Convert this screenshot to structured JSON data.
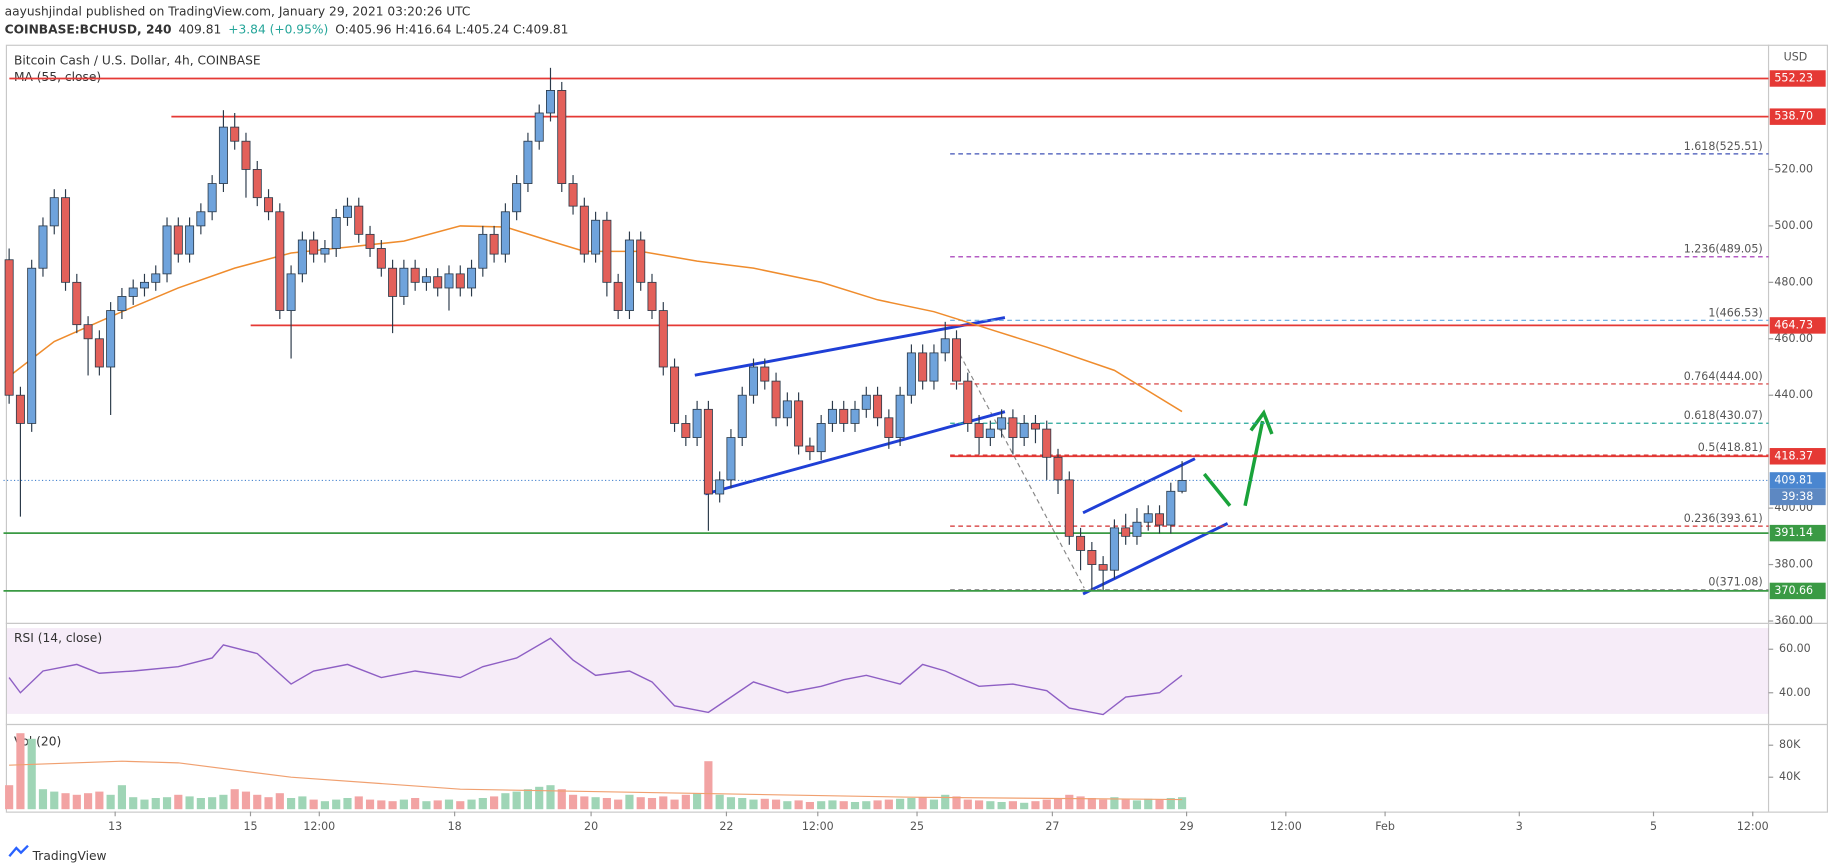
{
  "header": {
    "byline": "aayushjindal published on TradingView.com, January 29, 2021 03:20:26 UTC",
    "symbol": "COINBASE:BCHUSD, 240",
    "last": "409.81",
    "change": "+3.84 (+0.95%)",
    "ohlc": "O:405.96 H:416.64 L:405.24 C:409.81",
    "brand": "TradingView"
  },
  "chart_data": {
    "type": "candlestick",
    "title": "Bitcoin Cash / U.S. Dollar, 4h, COINBASE",
    "currency": "USD",
    "up_color": "#6fa3dc",
    "down_color": "#e3605a",
    "xlim": [
      -0.5,
      156
    ],
    "ylim": [
      360,
      564.2
    ],
    "grid": false,
    "yticks": [
      {
        "value": 520,
        "label": "520.00"
      },
      {
        "value": 500,
        "label": "500.00"
      },
      {
        "value": 480,
        "label": "480.00"
      },
      {
        "value": 460,
        "label": "460.00"
      },
      {
        "value": 440,
        "label": "440.00"
      },
      {
        "value": 400,
        "label": "400.00"
      },
      {
        "value": 380,
        "label": "380.00"
      },
      {
        "value": 360,
        "label": "360.00"
      }
    ],
    "xticks": [
      {
        "value": 9.4,
        "label": "13"
      },
      {
        "value": 21.4,
        "label": "15"
      },
      {
        "value": 27.5,
        "label": "12:00"
      },
      {
        "value": 39.5,
        "label": "18"
      },
      {
        "value": 51.6,
        "label": "20"
      },
      {
        "value": 63.6,
        "label": "22"
      },
      {
        "value": 71.7,
        "label": "12:00"
      },
      {
        "value": 80.5,
        "label": "25"
      },
      {
        "value": 92.5,
        "label": "27"
      },
      {
        "value": 104.4,
        "label": "29"
      },
      {
        "value": 113.2,
        "label": "12:00"
      },
      {
        "value": 122,
        "label": "Feb"
      },
      {
        "value": 133.9,
        "label": "3"
      },
      {
        "value": 145.8,
        "label": "5"
      },
      {
        "value": 154.6,
        "label": "12:00"
      }
    ],
    "open": [
      488,
      440,
      430,
      485,
      500,
      510,
      480,
      465,
      460,
      450,
      470,
      475,
      478,
      480,
      483,
      500,
      490,
      500,
      505,
      515,
      535,
      530,
      520,
      510,
      505,
      470,
      483,
      495,
      490,
      492,
      503,
      507,
      497,
      492,
      485,
      475,
      485,
      480,
      482,
      478,
      483,
      478,
      485,
      497,
      490,
      505,
      515,
      530,
      540,
      548,
      515,
      507,
      490,
      502,
      480,
      470,
      495,
      480,
      470,
      450,
      430,
      425,
      435,
      405,
      410,
      425,
      440,
      450,
      445,
      432,
      438,
      422,
      420,
      430,
      435,
      430,
      435,
      440,
      432,
      425,
      440,
      455,
      445,
      455,
      460,
      445,
      430,
      425,
      428,
      432,
      425,
      430,
      428,
      418,
      410,
      390,
      385,
      380,
      378,
      393,
      390,
      395,
      398,
      394,
      405.96
    ],
    "high": [
      492,
      443,
      488,
      503,
      513,
      513,
      483,
      468,
      463,
      473,
      478,
      481,
      483,
      486,
      503,
      503,
      503,
      508,
      518,
      541,
      540,
      533,
      523,
      513,
      508,
      486,
      498,
      498,
      495,
      506,
      510,
      510,
      500,
      495,
      488,
      488,
      488,
      485,
      485,
      486,
      486,
      488,
      500,
      500,
      508,
      518,
      533,
      543,
      556,
      551,
      518,
      510,
      505,
      505,
      483,
      498,
      498,
      483,
      473,
      453,
      433,
      438,
      438,
      413,
      428,
      443,
      453,
      453,
      448,
      441,
      441,
      425,
      433,
      438,
      438,
      438,
      443,
      443,
      435,
      443,
      458,
      458,
      458,
      466,
      463,
      448,
      433,
      431,
      435,
      435,
      433,
      433,
      431,
      421,
      413,
      393,
      388,
      383,
      396,
      398,
      400,
      401,
      401,
      409,
      416.64
    ],
    "low": [
      437,
      397,
      427,
      482,
      497,
      477,
      462,
      447,
      447,
      433,
      467,
      472,
      475,
      477,
      480,
      487,
      487,
      497,
      502,
      512,
      527,
      510,
      507,
      502,
      467,
      453,
      480,
      487,
      487,
      489,
      500,
      494,
      489,
      482,
      462,
      472,
      477,
      477,
      475,
      470,
      475,
      475,
      482,
      487,
      487,
      502,
      512,
      527,
      537,
      512,
      504,
      487,
      487,
      475,
      467,
      467,
      477,
      467,
      447,
      427,
      422,
      422,
      392,
      402,
      407,
      422,
      437,
      442,
      429,
      429,
      419,
      417,
      417,
      427,
      427,
      427,
      432,
      429,
      421,
      422,
      437,
      442,
      442,
      452,
      442,
      427,
      419,
      422,
      425,
      419,
      422,
      423,
      410,
      405,
      387,
      378,
      371,
      371,
      375,
      387,
      387,
      392,
      391,
      391,
      405.24
    ],
    "close": [
      440,
      430,
      485,
      500,
      510,
      480,
      465,
      460,
      450,
      470,
      475,
      478,
      480,
      483,
      500,
      490,
      500,
      505,
      515,
      535,
      530,
      520,
      510,
      505,
      470,
      483,
      495,
      490,
      492,
      503,
      507,
      497,
      492,
      485,
      475,
      485,
      480,
      482,
      478,
      483,
      478,
      485,
      497,
      490,
      505,
      515,
      530,
      540,
      548,
      515,
      507,
      490,
      502,
      480,
      470,
      495,
      480,
      470,
      450,
      430,
      425,
      435,
      405,
      410,
      425,
      440,
      450,
      445,
      432,
      438,
      422,
      420,
      430,
      435,
      430,
      435,
      440,
      432,
      425,
      440,
      455,
      445,
      455,
      460,
      445,
      430,
      425,
      428,
      432,
      425,
      430,
      428,
      418,
      410,
      390,
      385,
      380,
      378,
      393,
      390,
      395,
      398,
      394,
      405.96,
      409.81
    ],
    "ma": {
      "name": "MA (55, close)",
      "color": "#ef8c2d",
      "x": [
        0,
        4,
        10,
        15,
        20,
        25,
        30,
        35,
        40,
        44,
        48,
        51,
        56,
        61,
        66,
        72,
        77,
        82,
        87,
        92,
        98,
        104
      ],
      "values": [
        446.7,
        459,
        469.6,
        478,
        485,
        490.4,
        492.5,
        494.6,
        500,
        499.6,
        494.6,
        491,
        491,
        487.5,
        485,
        480,
        473.8,
        469.6,
        463.3,
        457,
        448.8,
        434.2
      ]
    },
    "levels": [
      {
        "value": 552.23,
        "label": "552.23",
        "color": "#e53935"
      },
      {
        "value": 538.7,
        "label": "538.70",
        "color": "#e53935"
      },
      {
        "value": 464.73,
        "label": "464.73",
        "color": "#e53935"
      },
      {
        "value": 418.37,
        "label": "418.37",
        "color": "#e53935"
      },
      {
        "value": 391.14,
        "label": "391.14",
        "color": "#3a9a44"
      },
      {
        "value": 370.66,
        "label": "370.66",
        "color": "#3a9a44"
      }
    ],
    "last_price": {
      "value": 409.81,
      "color": "#4a86d0"
    },
    "countdown": "39:38",
    "fib": [
      {
        "value": 525.51,
        "label": "1.618(525.51)",
        "color": "#3f51b5"
      },
      {
        "value": 489.05,
        "label": "1.236(489.05)",
        "color": "#9c27b0"
      },
      {
        "value": 466.53,
        "label": "1(466.53)",
        "color": "#64a8e0"
      },
      {
        "value": 444.0,
        "label": "0.764(444.00)",
        "color": "#d32f2f"
      },
      {
        "value": 430.07,
        "label": "0.618(430.07)",
        "color": "#26a69a"
      },
      {
        "value": 418.81,
        "label": "0.5(418.81)",
        "color": "#d32f2f"
      },
      {
        "value": 393.61,
        "label": "0.236(393.61)",
        "color": "#d32f2f"
      },
      {
        "value": 371.08,
        "label": "0(371.08)",
        "color": "#888888"
      }
    ],
    "rsi": {
      "name": "RSI (14, close)",
      "color": "#8e5fc4",
      "ylim": [
        26.5,
        70.8
      ],
      "yticks": [
        {
          "value": 60,
          "label": "60.00"
        },
        {
          "value": 40,
          "label": "40.00"
        }
      ],
      "x": [
        0,
        1,
        3,
        6,
        8,
        11,
        15,
        18,
        19,
        22,
        25,
        27,
        30,
        33,
        36,
        40,
        42,
        45,
        48,
        50,
        52,
        55,
        57,
        59,
        62,
        64,
        66,
        69,
        72,
        74,
        76,
        79,
        81,
        83,
        86,
        89,
        92,
        94,
        97,
        99,
        102,
        104
      ],
      "values": [
        47,
        40,
        50,
        53,
        49,
        50,
        52,
        56,
        62,
        58,
        44,
        50,
        53,
        47,
        50,
        47,
        52,
        56,
        65,
        55,
        48,
        50,
        45,
        34,
        31,
        38,
        45,
        40,
        43,
        46,
        48,
        44,
        53,
        50,
        43,
        44,
        41,
        33,
        30,
        38,
        40,
        48
      ]
    },
    "volume": {
      "name": "Vol (20)",
      "up_color": "#9fd5b6",
      "down_color": "#f2a3a3",
      "ylim": [
        0,
        100000
      ],
      "yticks": [
        {
          "value": 80000,
          "label": "80K"
        },
        {
          "value": 40000,
          "label": "40K"
        }
      ],
      "values": [
        30000,
        95000,
        88000,
        25000,
        22000,
        20000,
        18000,
        20000,
        22000,
        18000,
        30000,
        15000,
        12000,
        14000,
        15000,
        18000,
        16000,
        14000,
        15000,
        18000,
        25000,
        22000,
        18000,
        15000,
        20000,
        14000,
        16000,
        12000,
        10000,
        12000,
        14000,
        16000,
        12000,
        11000,
        10000,
        12000,
        14000,
        10000,
        11000,
        12000,
        10000,
        12000,
        14000,
        16000,
        20000,
        22000,
        25000,
        28000,
        30000,
        25000,
        18000,
        16000,
        15000,
        14000,
        12000,
        18000,
        15000,
        14000,
        16000,
        12000,
        18000,
        20000,
        60000,
        18000,
        15000,
        14000,
        12000,
        13000,
        12000,
        10000,
        11000,
        9000,
        10000,
        11000,
        10000,
        9000,
        10000,
        11000,
        12000,
        13000,
        14000,
        15000,
        12000,
        18000,
        16000,
        12000,
        11000,
        10000,
        9000,
        10000,
        8000,
        10000,
        12000,
        14000,
        18000,
        16000,
        14000,
        12000,
        15000,
        12000,
        11000,
        13000,
        12000,
        14000,
        15000
      ],
      "ma": {
        "color": "#f0a070",
        "x": [
          0,
          10,
          15,
          25,
          40,
          60,
          80,
          104
        ],
        "values": [
          55000,
          60000,
          58000,
          40000,
          25000,
          20000,
          15000,
          12000
        ]
      }
    }
  }
}
